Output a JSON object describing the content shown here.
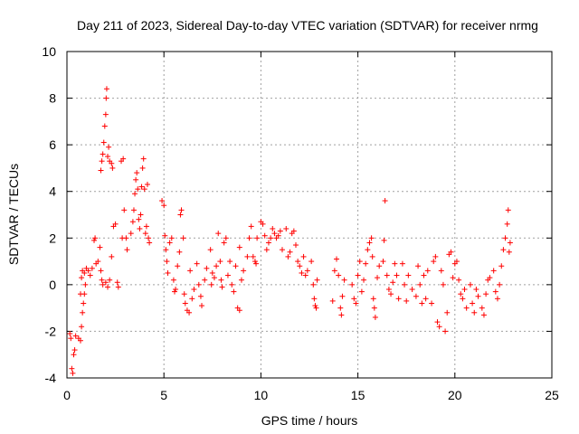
{
  "chart_data": {
    "type": "scatter",
    "title": "Day 211 of 2023, Sidereal Day-to-day VTEC variation (SDTVAR) for receiver nrmg",
    "xlabel": "GPS time / hours",
    "ylabel": "SDTVAR / TECUs",
    "xlim": [
      0,
      25
    ],
    "ylim": [
      -4,
      10
    ],
    "xticks": [
      0,
      5,
      10,
      15,
      20,
      25
    ],
    "yticks": [
      -4,
      -2,
      0,
      2,
      4,
      6,
      8,
      10
    ],
    "grid": true,
    "marker": "+",
    "color": "#ff0000",
    "series": [
      {
        "name": "SDTVAR",
        "points": [
          [
            0.15,
            -2.1
          ],
          [
            0.2,
            -2.3
          ],
          [
            0.25,
            -3.6
          ],
          [
            0.3,
            -3.8
          ],
          [
            0.35,
            -3.0
          ],
          [
            0.4,
            -2.8
          ],
          [
            0.45,
            -2.2
          ],
          [
            0.6,
            -2.3
          ],
          [
            0.7,
            -2.4
          ],
          [
            0.75,
            -1.8
          ],
          [
            0.8,
            -1.2
          ],
          [
            0.85,
            -0.8
          ],
          [
            0.9,
            -0.4
          ],
          [
            0.95,
            0.0
          ],
          [
            0.7,
            -0.4
          ],
          [
            0.75,
            0.3
          ],
          [
            0.8,
            0.6
          ],
          [
            0.9,
            0.5
          ],
          [
            1.0,
            0.7
          ],
          [
            1.1,
            0.6
          ],
          [
            1.2,
            0.4
          ],
          [
            1.3,
            0.7
          ],
          [
            1.4,
            1.9
          ],
          [
            1.45,
            2.0
          ],
          [
            1.5,
            0.9
          ],
          [
            1.6,
            1.0
          ],
          [
            1.7,
            1.6
          ],
          [
            1.75,
            0.6
          ],
          [
            1.8,
            0.2
          ],
          [
            1.85,
            0.0
          ],
          [
            1.75,
            4.9
          ],
          [
            1.8,
            5.3
          ],
          [
            1.85,
            5.6
          ],
          [
            1.9,
            6.1
          ],
          [
            1.95,
            6.8
          ],
          [
            2.0,
            7.3
          ],
          [
            2.02,
            8.0
          ],
          [
            2.05,
            8.4
          ],
          [
            2.1,
            5.5
          ],
          [
            2.15,
            5.9
          ],
          [
            2.2,
            5.3
          ],
          [
            2.3,
            5.2
          ],
          [
            2.35,
            5.0
          ],
          [
            2.0,
            0.1
          ],
          [
            2.1,
            -0.1
          ],
          [
            2.2,
            0.2
          ],
          [
            2.3,
            1.2
          ],
          [
            2.4,
            2.5
          ],
          [
            2.5,
            2.6
          ],
          [
            2.6,
            0.1
          ],
          [
            2.65,
            -0.1
          ],
          [
            2.8,
            5.3
          ],
          [
            2.9,
            5.4
          ],
          [
            2.85,
            2.0
          ],
          [
            2.95,
            3.2
          ],
          [
            3.05,
            2.0
          ],
          [
            3.1,
            1.5
          ],
          [
            3.3,
            2.2
          ],
          [
            3.4,
            2.7
          ],
          [
            3.45,
            3.2
          ],
          [
            3.5,
            3.9
          ],
          [
            3.55,
            4.5
          ],
          [
            3.6,
            4.8
          ],
          [
            3.65,
            4.1
          ],
          [
            3.7,
            2.8
          ],
          [
            3.75,
            2.4
          ],
          [
            3.8,
            3.0
          ],
          [
            3.85,
            4.2
          ],
          [
            3.9,
            5.0
          ],
          [
            3.95,
            5.4
          ],
          [
            4.0,
            4.1
          ],
          [
            4.05,
            2.2
          ],
          [
            4.1,
            2.5
          ],
          [
            4.15,
            4.3
          ],
          [
            4.2,
            2.0
          ],
          [
            4.25,
            1.8
          ],
          [
            4.9,
            3.6
          ],
          [
            5.0,
            3.4
          ],
          [
            5.05,
            2.1
          ],
          [
            5.1,
            1.5
          ],
          [
            5.15,
            1.0
          ],
          [
            5.2,
            0.5
          ],
          [
            5.3,
            1.8
          ],
          [
            5.4,
            2.0
          ],
          [
            5.5,
            0.2
          ],
          [
            5.55,
            -0.3
          ],
          [
            5.6,
            -0.2
          ],
          [
            5.7,
            0.8
          ],
          [
            5.8,
            1.4
          ],
          [
            5.85,
            3.0
          ],
          [
            5.9,
            3.2
          ],
          [
            6.0,
            2.0
          ],
          [
            6.05,
            -0.4
          ],
          [
            6.1,
            -0.8
          ],
          [
            6.2,
            -1.1
          ],
          [
            6.3,
            -1.2
          ],
          [
            6.35,
            0.6
          ],
          [
            6.45,
            -0.6
          ],
          [
            6.55,
            -0.2
          ],
          [
            6.7,
            0.9
          ],
          [
            6.8,
            0.0
          ],
          [
            6.9,
            -0.5
          ],
          [
            6.95,
            -0.9
          ],
          [
            7.1,
            0.2
          ],
          [
            7.2,
            0.7
          ],
          [
            7.4,
            1.5
          ],
          [
            7.45,
            0.0
          ],
          [
            7.5,
            0.5
          ],
          [
            7.6,
            0.3
          ],
          [
            7.7,
            0.8
          ],
          [
            7.8,
            2.2
          ],
          [
            7.9,
            1.0
          ],
          [
            7.95,
            0.2
          ],
          [
            8.0,
            -0.1
          ],
          [
            8.1,
            1.8
          ],
          [
            8.2,
            2.0
          ],
          [
            8.3,
            0.4
          ],
          [
            8.4,
            1.0
          ],
          [
            8.5,
            0.0
          ],
          [
            8.6,
            -0.3
          ],
          [
            8.7,
            0.8
          ],
          [
            8.8,
            -1.0
          ],
          [
            8.9,
            -1.1
          ],
          [
            8.9,
            1.6
          ],
          [
            9.0,
            0.2
          ],
          [
            9.1,
            0.6
          ],
          [
            9.3,
            1.2
          ],
          [
            9.4,
            2.0
          ],
          [
            9.5,
            2.5
          ],
          [
            9.6,
            1.2
          ],
          [
            9.7,
            1.0
          ],
          [
            9.75,
            0.9
          ],
          [
            9.8,
            2.0
          ],
          [
            10.0,
            2.7
          ],
          [
            10.1,
            2.6
          ],
          [
            10.2,
            2.1
          ],
          [
            10.3,
            1.5
          ],
          [
            10.4,
            1.8
          ],
          [
            10.5,
            2.0
          ],
          [
            10.6,
            2.4
          ],
          [
            10.7,
            2.2
          ],
          [
            10.8,
            2.0
          ],
          [
            10.9,
            2.1
          ],
          [
            11.0,
            2.3
          ],
          [
            11.1,
            1.5
          ],
          [
            11.3,
            2.4
          ],
          [
            11.4,
            1.2
          ],
          [
            11.5,
            1.4
          ],
          [
            11.6,
            2.2
          ],
          [
            11.7,
            2.3
          ],
          [
            11.8,
            1.7
          ],
          [
            11.9,
            1.0
          ],
          [
            12.0,
            0.8
          ],
          [
            12.1,
            0.5
          ],
          [
            12.2,
            1.2
          ],
          [
            12.3,
            0.4
          ],
          [
            12.4,
            0.6
          ],
          [
            12.6,
            1.0
          ],
          [
            12.7,
            0.0
          ],
          [
            12.75,
            -0.6
          ],
          [
            12.8,
            -0.9
          ],
          [
            12.85,
            -1.0
          ],
          [
            12.9,
            0.2
          ],
          [
            13.7,
            -0.7
          ],
          [
            13.8,
            0.6
          ],
          [
            13.9,
            1.1
          ],
          [
            14.0,
            0.4
          ],
          [
            14.1,
            -1.0
          ],
          [
            14.15,
            -1.3
          ],
          [
            14.2,
            -0.5
          ],
          [
            14.3,
            0.2
          ],
          [
            14.7,
            0.0
          ],
          [
            14.8,
            -0.6
          ],
          [
            14.9,
            -0.8
          ],
          [
            15.0,
            0.4
          ],
          [
            15.1,
            1.0
          ],
          [
            15.2,
            -0.3
          ],
          [
            15.3,
            0.2
          ],
          [
            15.4,
            0.9
          ],
          [
            15.5,
            1.5
          ],
          [
            15.6,
            1.8
          ],
          [
            15.7,
            2.0
          ],
          [
            15.75,
            1.2
          ],
          [
            15.8,
            -0.6
          ],
          [
            15.85,
            -1.0
          ],
          [
            15.9,
            -1.4
          ],
          [
            16.0,
            0.3
          ],
          [
            16.1,
            0.8
          ],
          [
            16.3,
            1.0
          ],
          [
            16.35,
            1.9
          ],
          [
            16.4,
            3.6
          ],
          [
            16.5,
            0.4
          ],
          [
            16.6,
            -0.2
          ],
          [
            16.7,
            -0.4
          ],
          [
            16.8,
            0.1
          ],
          [
            16.9,
            0.9
          ],
          [
            17.0,
            0.4
          ],
          [
            17.1,
            -0.6
          ],
          [
            17.3,
            0.9
          ],
          [
            17.4,
            0.0
          ],
          [
            17.5,
            -0.7
          ],
          [
            17.6,
            0.4
          ],
          [
            17.8,
            -0.2
          ],
          [
            18.0,
            -0.5
          ],
          [
            18.1,
            0.8
          ],
          [
            18.2,
            0.0
          ],
          [
            18.3,
            -0.8
          ],
          [
            18.4,
            0.4
          ],
          [
            18.5,
            -0.6
          ],
          [
            18.6,
            0.6
          ],
          [
            18.8,
            -0.8
          ],
          [
            18.9,
            1.0
          ],
          [
            19.0,
            1.2
          ],
          [
            19.1,
            -1.6
          ],
          [
            19.2,
            -1.8
          ],
          [
            19.3,
            0.6
          ],
          [
            19.4,
            0.0
          ],
          [
            19.5,
            -2.0
          ],
          [
            19.6,
            -1.2
          ],
          [
            19.7,
            1.3
          ],
          [
            19.8,
            1.4
          ],
          [
            19.9,
            0.3
          ],
          [
            20.0,
            0.9
          ],
          [
            20.1,
            1.0
          ],
          [
            20.2,
            0.2
          ],
          [
            20.3,
            -0.4
          ],
          [
            20.4,
            -0.6
          ],
          [
            20.5,
            -0.2
          ],
          [
            20.6,
            -1.0
          ],
          [
            20.8,
            0.0
          ],
          [
            20.9,
            -0.8
          ],
          [
            21.0,
            -1.2
          ],
          [
            21.1,
            -0.2
          ],
          [
            21.2,
            -0.5
          ],
          [
            21.4,
            -1.0
          ],
          [
            21.5,
            -1.3
          ],
          [
            21.6,
            -0.4
          ],
          [
            21.7,
            0.2
          ],
          [
            21.8,
            0.3
          ],
          [
            22.0,
            0.6
          ],
          [
            22.1,
            -0.3
          ],
          [
            22.2,
            -0.6
          ],
          [
            22.3,
            0.0
          ],
          [
            22.4,
            0.8
          ],
          [
            22.5,
            1.5
          ],
          [
            22.6,
            2.0
          ],
          [
            22.7,
            2.6
          ],
          [
            22.75,
            3.2
          ],
          [
            22.8,
            1.4
          ],
          [
            22.85,
            1.8
          ]
        ]
      }
    ]
  }
}
